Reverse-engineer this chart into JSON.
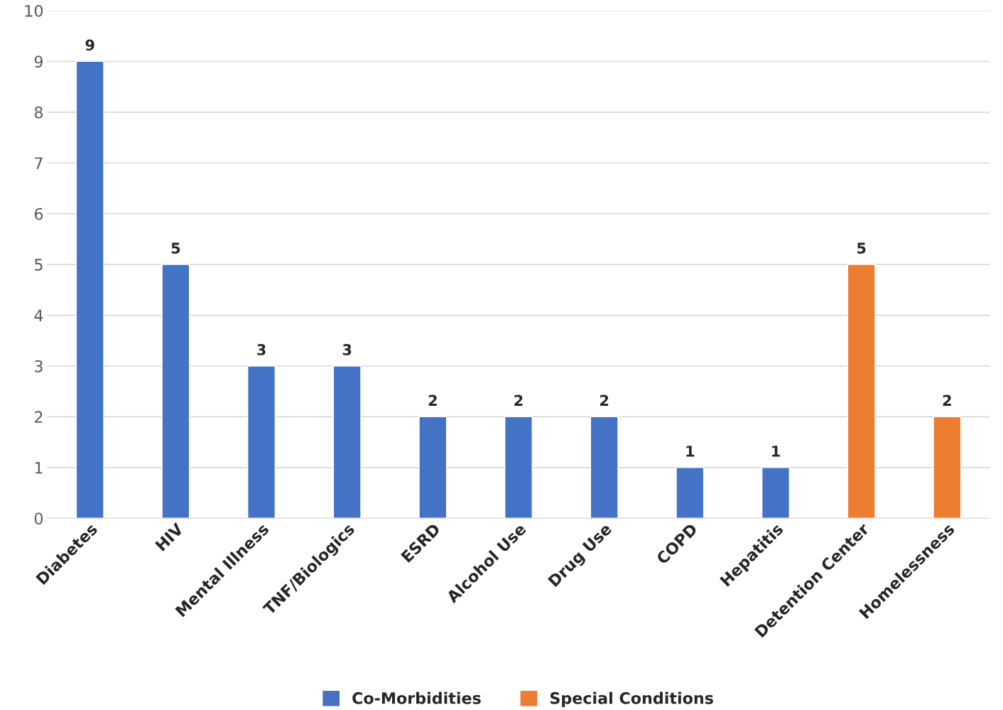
{
  "chart_data": {
    "type": "bar",
    "categories": [
      "Diabetes",
      "HIV",
      "Mental Illness",
      "TNF/Biologics",
      "ESRD",
      "Alcohol Use",
      "Drug Use",
      "COPD",
      "Hepatitis",
      "Detention Center",
      "Homelessness"
    ],
    "series": [
      {
        "name": "Co-Morbidities",
        "color": "#4472c4",
        "values": [
          9,
          5,
          3,
          3,
          2,
          2,
          2,
          1,
          1,
          null,
          null
        ]
      },
      {
        "name": "Special Conditions",
        "color": "#ed7d31",
        "values": [
          null,
          null,
          null,
          null,
          null,
          null,
          null,
          null,
          null,
          5,
          2
        ]
      }
    ],
    "ylim": [
      0,
      10
    ],
    "yticks": [
      0,
      1,
      2,
      3,
      4,
      5,
      6,
      7,
      8,
      9,
      10
    ],
    "grid": "y",
    "legend": "bottom",
    "data_labels": true
  }
}
